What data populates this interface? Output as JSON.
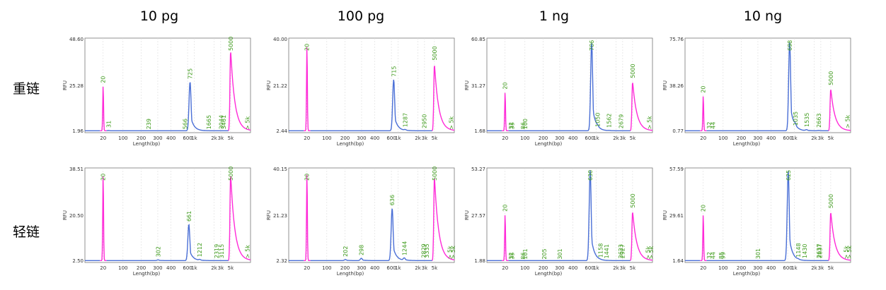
{
  "columns": [
    "10 pg",
    "100 pg",
    "1 ng",
    "10 ng"
  ],
  "rows": [
    "重链",
    "轻链"
  ],
  "axis": {
    "ylabel": "RFU",
    "xlabel": "Length(bp)",
    "xticks": [
      "20",
      "100",
      "200",
      "300",
      "400",
      "600",
      "1k",
      "2k",
      "3k",
      "5k"
    ]
  },
  "colors": {
    "marker": "#ff2bd8",
    "sample": "#4a6fd6",
    "label": "#3f9b1c"
  },
  "chart_data": [
    {
      "type": "line",
      "row": "重链",
      "col": "10 pg",
      "ylim": [
        1.96,
        48.6
      ],
      "ymid": "25.28",
      "peaks": [
        {
          "label": "20",
          "size": 20,
          "height": 25.0,
          "marker": true
        },
        {
          "label": "31",
          "size": 31,
          "height": 3.0
        },
        {
          "label": "239",
          "size": 239,
          "height": 2.2
        },
        {
          "label": "566",
          "size": 566,
          "height": 2.2
        },
        {
          "label": "725",
          "size": 725,
          "height": 27.0
        },
        {
          "label": "1665",
          "size": 1665,
          "height": 2.2
        },
        {
          "label": "3044",
          "size": 3044,
          "height": 2.2
        },
        {
          "label": "3461",
          "size": 3461,
          "height": 2.2
        },
        {
          "label": "5000",
          "size": 5000,
          "height": 43.0,
          "marker": true
        },
        {
          "label": "> 5k",
          "size": 9000,
          "height": 2.0
        }
      ]
    },
    {
      "type": "line",
      "row": "重链",
      "col": "100 pg",
      "ylim": [
        2.44,
        40.0
      ],
      "ymid": "21.22",
      "peaks": [
        {
          "label": "20",
          "size": 20,
          "height": 37.0,
          "marker": true
        },
        {
          "label": "715",
          "size": 715,
          "height": 23.5
        },
        {
          "label": "1287",
          "size": 1287,
          "height": 3.5
        },
        {
          "label": "2950",
          "size": 2950,
          "height": 3.0
        },
        {
          "label": "5000",
          "size": 5000,
          "height": 30.0,
          "marker": true
        },
        {
          "label": "> 5k",
          "size": 9000,
          "height": 2.5
        }
      ]
    },
    {
      "type": "line",
      "row": "重链",
      "col": "1 ng",
      "ylim": [
        1.68,
        60.85
      ],
      "ymid": "31.27",
      "peaks": [
        {
          "label": "20",
          "size": 20,
          "height": 27.0,
          "marker": true
        },
        {
          "label": "32",
          "size": 32,
          "height": 2.0
        },
        {
          "label": "35",
          "size": 35,
          "height": 2.0
        },
        {
          "label": "86",
          "size": 86,
          "height": 2.0
        },
        {
          "label": "100",
          "size": 100,
          "height": 2.0
        },
        {
          "label": "706",
          "size": 706,
          "height": 58.0
        },
        {
          "label": "1050",
          "size": 1050,
          "height": 3.5
        },
        {
          "label": "1562",
          "size": 1562,
          "height": 3.0
        },
        {
          "label": "2679",
          "size": 2679,
          "height": 2.5
        },
        {
          "label": "5000",
          "size": 5000,
          "height": 34.0,
          "marker": true
        },
        {
          "label": "> 5k",
          "size": 9000,
          "height": 2.0
        }
      ]
    },
    {
      "type": "line",
      "row": "重链",
      "col": "10 ng",
      "ylim": [
        0.77,
        75.76
      ],
      "ymid": "38.26",
      "peaks": [
        {
          "label": "20",
          "size": 20,
          "height": 30.0,
          "marker": true
        },
        {
          "label": "32",
          "size": 32,
          "height": 1.5
        },
        {
          "label": "44",
          "size": 44,
          "height": 1.5
        },
        {
          "label": "698",
          "size": 698,
          "height": 73.0
        },
        {
          "label": "1035",
          "size": 1035,
          "height": 4.0
        },
        {
          "label": "1535",
          "size": 1535,
          "height": 3.0
        },
        {
          "label": "2663",
          "size": 2663,
          "height": 2.5
        },
        {
          "label": "5000",
          "size": 5000,
          "height": 36.0,
          "marker": true
        },
        {
          "label": "> 5k",
          "size": 9000,
          "height": 2.0
        }
      ]
    },
    {
      "type": "line",
      "row": "轻链",
      "col": "10 pg",
      "ylim": [
        2.5,
        38.51
      ],
      "ymid": "20.50",
      "peaks": [
        {
          "label": "20",
          "size": 20,
          "height": 36.0,
          "marker": true
        },
        {
          "label": "302",
          "size": 302,
          "height": 3.5
        },
        {
          "label": "661",
          "size": 661,
          "height": 17.0
        },
        {
          "label": "1212",
          "size": 1212,
          "height": 3.5
        },
        {
          "label": "2319",
          "size": 2319,
          "height": 3.0
        },
        {
          "label": "3115",
          "size": 3115,
          "height": 3.0
        },
        {
          "label": "5000",
          "size": 5000,
          "height": 36.5,
          "marker": true
        },
        {
          "label": "> 5k",
          "size": 9000,
          "height": 3.0
        }
      ]
    },
    {
      "type": "line",
      "row": "轻链",
      "col": "100 pg",
      "ylim": [
        2.32,
        40.15
      ],
      "ymid": "21.23",
      "peaks": [
        {
          "label": "20",
          "size": 20,
          "height": 38.0,
          "marker": true
        },
        {
          "label": "202",
          "size": 202,
          "height": 3.5
        },
        {
          "label": "298",
          "size": 298,
          "height": 4.0
        },
        {
          "label": "636",
          "size": 636,
          "height": 24.0
        },
        {
          "label": "1244",
          "size": 1244,
          "height": 4.0
        },
        {
          "label": "2829",
          "size": 2829,
          "height": 3.0
        },
        {
          "label": "3335",
          "size": 3335,
          "height": 3.0
        },
        {
          "label": "5000",
          "size": 5000,
          "height": 37.0,
          "marker": true
        },
        {
          "label": "> 5k",
          "size": 8500,
          "height": 2.5
        },
        {
          "label": "> 5k",
          "size": 9500,
          "height": 2.5
        }
      ]
    },
    {
      "type": "line",
      "row": "轻链",
      "col": "1 ng",
      "ylim": [
        1.88,
        53.27
      ],
      "ymid": "27.57",
      "peaks": [
        {
          "label": "20",
          "size": 20,
          "height": 28.0,
          "marker": true
        },
        {
          "label": "32",
          "size": 32,
          "height": 2.0
        },
        {
          "label": "35",
          "size": 35,
          "height": 2.0
        },
        {
          "label": "86",
          "size": 86,
          "height": 2.0
        },
        {
          "label": "101",
          "size": 101,
          "height": 2.0
        },
        {
          "label": "205",
          "size": 205,
          "height": 2.0
        },
        {
          "label": "301",
          "size": 301,
          "height": 2.0
        },
        {
          "label": "630",
          "size": 630,
          "height": 52.0
        },
        {
          "label": "1158",
          "size": 1158,
          "height": 3.0
        },
        {
          "label": "1441",
          "size": 1441,
          "height": 2.5
        },
        {
          "label": "2623",
          "size": 2623,
          "height": 2.5
        },
        {
          "label": "2927",
          "size": 2927,
          "height": 2.5
        },
        {
          "label": "5000",
          "size": 5000,
          "height": 30.0,
          "marker": true
        },
        {
          "label": "> 5k",
          "size": 8500,
          "height": 2.0
        },
        {
          "label": "> 5k",
          "size": 9500,
          "height": 2.0
        }
      ]
    },
    {
      "type": "line",
      "row": "轻链",
      "col": "10 ng",
      "ylim": [
        1.64,
        57.59
      ],
      "ymid": "29.61",
      "peaks": [
        {
          "label": "20",
          "size": 20,
          "height": 30.0,
          "marker": true
        },
        {
          "label": "32",
          "size": 32,
          "height": 2.0
        },
        {
          "label": "44",
          "size": 44,
          "height": 2.0
        },
        {
          "label": "85",
          "size": 85,
          "height": 2.0
        },
        {
          "label": "99",
          "size": 99,
          "height": 2.0
        },
        {
          "label": "301",
          "size": 301,
          "height": 2.0
        },
        {
          "label": "625",
          "size": 625,
          "height": 56.0
        },
        {
          "label": "1148",
          "size": 1148,
          "height": 3.0
        },
        {
          "label": "1430",
          "size": 1430,
          "height": 2.5
        },
        {
          "label": "2637",
          "size": 2637,
          "height": 2.5
        },
        {
          "label": "2837",
          "size": 2837,
          "height": 2.5
        },
        {
          "label": "5000",
          "size": 5000,
          "height": 32.0,
          "marker": true
        },
        {
          "label": "> 5k",
          "size": 8500,
          "height": 2.0
        },
        {
          "label": "> 5k",
          "size": 9500,
          "height": 2.0
        }
      ]
    }
  ]
}
